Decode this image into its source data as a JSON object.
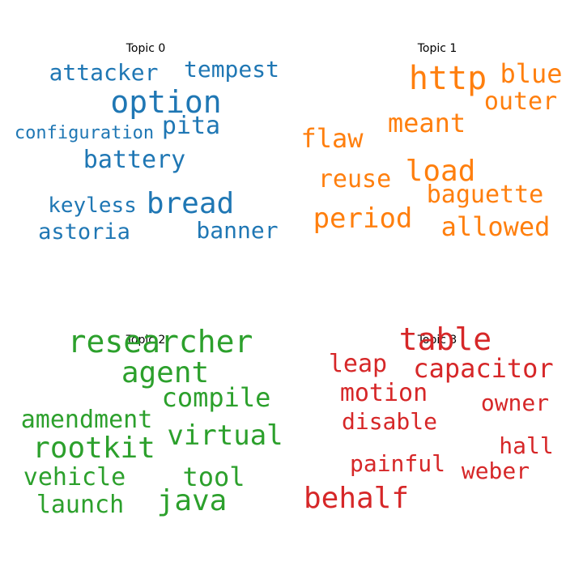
{
  "chart_data": [
    {
      "type": "wordcloud",
      "title": "Topic 0",
      "color": "#1f77b4",
      "words": [
        "option",
        "bread",
        "battery",
        "pita",
        "tempest",
        "attacker",
        "configuration",
        "keyless",
        "banner",
        "astoria"
      ]
    },
    {
      "type": "wordcloud",
      "title": "Topic 1",
      "color": "#ff7f0e",
      "words": [
        "http",
        "load",
        "period",
        "outer",
        "blue",
        "meant",
        "flaw",
        "reuse",
        "baguette",
        "allowed"
      ]
    },
    {
      "type": "wordcloud",
      "title": "Topic 2",
      "color": "#2ca02c",
      "words": [
        "researcher",
        "agent",
        "rootkit",
        "java",
        "virtual",
        "compile",
        "amendment",
        "vehicle",
        "tool",
        "launch"
      ]
    },
    {
      "type": "wordcloud",
      "title": "Topic 3",
      "color": "#d62728",
      "words": [
        "table",
        "behalf",
        "capacitor",
        "leap",
        "motion",
        "disable",
        "painful",
        "owner",
        "hall",
        "weber"
      ]
    }
  ]
}
